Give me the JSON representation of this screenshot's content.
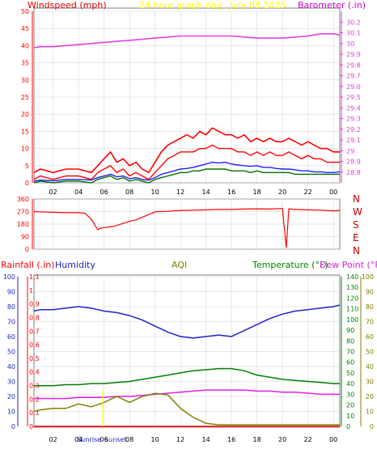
{
  "colors": {
    "wind": "#ff0000",
    "gust": "#ff0000",
    "avg": "#2020ff",
    "dark": "#007000",
    "baro": "#e040e0",
    "dir": "#ff0000",
    "header_title": "#ffff00",
    "rain": "#ff0000",
    "humidity": "#2222cc",
    "aqi": "#808000",
    "temp": "#008000",
    "dew": "#e020e0",
    "grid": "#d0d0d0",
    "axis_black": "#000000",
    "sun": "#ffff00"
  },
  "time_axis": {
    "labels": [
      "02",
      "04",
      "06",
      "08",
      "10",
      "12",
      "14",
      "16",
      "18",
      "20",
      "22",
      "00"
    ]
  },
  "chart_data": [
    {
      "id": "wind_baro",
      "type": "line",
      "title": "24 hour graph day , July 08 2025",
      "left_axis_label": "Windspeed (mph)",
      "right_axis_label": "Barometer (.in)",
      "x_range_hours": [
        0.5,
        24.5
      ],
      "left_ylim": [
        0,
        50
      ],
      "left_ticks": [
        "0",
        "5",
        "10",
        "15",
        "20",
        "25",
        "30",
        "35",
        "40",
        "45",
        "50"
      ],
      "right_ylim": [
        28.7,
        30.3
      ],
      "right_ticks": [
        "28.8",
        "28.9",
        "29",
        "29.1",
        "29.2",
        "29.3",
        "29.4",
        "29.5",
        "29.6",
        "29.7",
        "29.8",
        "29.9",
        "30",
        "30.1",
        "30.2"
      ],
      "series": [
        {
          "key": "gust",
          "color_key": "gust",
          "x": [
            0.5,
            1,
            2,
            3,
            4,
            5,
            5.5,
            6,
            6.5,
            7,
            7.5,
            8,
            8.5,
            9,
            9.5,
            10,
            10.5,
            11,
            11.5,
            12,
            12.5,
            13,
            13.5,
            14,
            14.5,
            15,
            15.5,
            16,
            16.5,
            17,
            17.5,
            18,
            18.5,
            19,
            19.5,
            20,
            20.5,
            21,
            21.5,
            22,
            22.5,
            23,
            23.5,
            24,
            24.5
          ],
          "values": [
            3,
            4,
            3,
            4,
            4,
            3,
            5,
            7,
            9,
            6,
            7,
            5,
            6,
            4,
            3,
            6,
            9,
            11,
            12,
            13,
            14,
            13,
            15,
            14,
            16,
            15,
            14,
            14,
            13,
            14,
            12,
            13,
            12,
            13,
            12,
            12,
            13,
            12,
            11,
            12,
            11,
            10,
            10,
            9,
            9
          ]
        },
        {
          "key": "wind",
          "color_key": "wind",
          "x": [
            0.5,
            1,
            2,
            3,
            4,
            5,
            5.5,
            6,
            6.5,
            7,
            7.5,
            8,
            8.5,
            9,
            9.5,
            10,
            10.5,
            11,
            11.5,
            12,
            12.5,
            13,
            13.5,
            14,
            14.5,
            15,
            15.5,
            16,
            16.5,
            17,
            17.5,
            18,
            18.5,
            19,
            19.5,
            20,
            20.5,
            21,
            21.5,
            22,
            22.5,
            23,
            23.5,
            24,
            24.5
          ],
          "values": [
            1,
            2,
            1,
            2,
            2,
            1,
            3,
            4,
            5,
            3,
            4,
            2,
            3,
            2,
            1,
            3,
            5,
            7,
            8,
            9,
            9,
            9,
            10,
            10,
            11,
            10,
            10,
            10,
            9,
            9,
            8,
            9,
            8,
            9,
            8,
            8,
            9,
            8,
            7,
            8,
            7,
            7,
            6,
            6,
            6
          ]
        },
        {
          "key": "avg",
          "color_key": "avg",
          "x": [
            0.5,
            1,
            2,
            3,
            4,
            5,
            5.5,
            6,
            6.5,
            7,
            7.5,
            8,
            8.5,
            9,
            9.5,
            10,
            10.5,
            11,
            11.5,
            12,
            12.5,
            13,
            13.5,
            14,
            14.5,
            15,
            15.5,
            16,
            16.5,
            17,
            17.5,
            18,
            18.5,
            19,
            19.5,
            20,
            20.5,
            21,
            21.5,
            22,
            22.5,
            23,
            23.5,
            24,
            24.5
          ],
          "values": [
            0.5,
            0.8,
            0.6,
            1,
            1,
            0.8,
            1.5,
            2,
            2.5,
            1.8,
            2,
            1.2,
            1.5,
            1,
            0.8,
            1.5,
            2.5,
            3,
            3.5,
            4,
            4.2,
            4.5,
            5,
            5.5,
            6,
            5.8,
            6,
            5.5,
            5.2,
            5,
            4.8,
            5,
            4.5,
            4.5,
            4.2,
            4,
            4,
            3.8,
            3.5,
            3.5,
            3.2,
            3.2,
            3,
            3,
            3.2
          ]
        },
        {
          "key": "dark",
          "color_key": "dark",
          "x": [
            0.5,
            1,
            2,
            3,
            4,
            5,
            5.5,
            6,
            6.5,
            7,
            7.5,
            8,
            8.5,
            9,
            9.5,
            10,
            10.5,
            11,
            11.5,
            12,
            12.5,
            13,
            13.5,
            14,
            14.5,
            15,
            15.5,
            16,
            16.5,
            17,
            17.5,
            18,
            18.5,
            19,
            19.5,
            20,
            20.5,
            21,
            21.5,
            22,
            22.5,
            23,
            23.5,
            24,
            24.5
          ],
          "values": [
            0,
            0.5,
            0,
            0.5,
            0.5,
            0,
            1,
            1.5,
            2,
            1,
            1.5,
            0.5,
            1,
            0.5,
            0,
            1,
            1.5,
            2,
            2.5,
            3,
            3,
            3.5,
            3.5,
            4,
            4,
            4,
            4,
            3.5,
            3.5,
            3.5,
            3,
            3.5,
            3,
            3,
            3,
            3,
            3,
            2.5,
            2.5,
            2.5,
            2.5,
            2.5,
            2.5,
            2.5,
            2.5
          ]
        },
        {
          "key": "baro",
          "color_key": "baro",
          "axis": "right",
          "x": [
            0.5,
            1,
            2,
            3,
            4,
            5,
            6,
            7,
            8,
            9,
            10,
            11,
            12,
            13,
            14,
            15,
            16,
            17,
            18,
            19,
            20,
            21,
            22,
            23,
            24,
            24.5
          ],
          "values": [
            29.96,
            29.97,
            29.97,
            29.98,
            29.99,
            30.0,
            30.01,
            30.02,
            30.03,
            30.04,
            30.05,
            30.06,
            30.07,
            30.07,
            30.07,
            30.07,
            30.07,
            30.06,
            30.05,
            30.05,
            30.05,
            30.06,
            30.07,
            30.09,
            30.09,
            30.08
          ]
        }
      ]
    },
    {
      "id": "wind_direction",
      "type": "line",
      "x_range_hours": [
        0.5,
        24.5
      ],
      "ylim": [
        0,
        360
      ],
      "left_ticks": [
        "0",
        "90",
        "180",
        "270",
        "360"
      ],
      "compass": [
        "N",
        "W",
        "S",
        "E",
        "N"
      ],
      "series": [
        {
          "key": "dir",
          "color_key": "dir",
          "x": [
            0.5,
            1,
            2,
            3,
            4,
            4.5,
            5,
            5.5,
            5.7,
            6,
            6.5,
            7,
            7.5,
            8,
            8.5,
            9,
            9.5,
            10,
            10.5,
            11,
            12,
            13,
            14,
            15,
            16,
            17,
            18,
            19,
            20,
            20.3,
            20.5,
            21,
            22,
            23,
            24,
            24.5
          ],
          "values": [
            270,
            268,
            265,
            262,
            262,
            258,
            215,
            140,
            150,
            155,
            160,
            170,
            185,
            200,
            210,
            230,
            248,
            268,
            270,
            272,
            278,
            280,
            282,
            285,
            285,
            288,
            290,
            288,
            292,
            10,
            290,
            285,
            282,
            280,
            275,
            278
          ]
        }
      ]
    },
    {
      "id": "rain_hum_temp",
      "type": "line",
      "header_labels": {
        "rainfall": "Rainfall (.in)",
        "humidity": "Humidity",
        "aqi": "AQI",
        "temperature": "Temperature (°F)",
        "dewpoint": "Dew Point (°F)"
      },
      "x_range_hours": [
        0.5,
        24.5
      ],
      "humidity_ticks": [
        "0",
        "10",
        "20",
        "30",
        "40",
        "50",
        "60",
        "70",
        "80",
        "90",
        "100"
      ],
      "rain_ticks": [
        "0",
        "0.1",
        "0.2",
        "0.3",
        "0.4",
        "0.5",
        "0.6",
        "0.7",
        "0.8",
        "0.9",
        "1",
        "1.1"
      ],
      "temp_ticks": [
        "0",
        "10",
        "20",
        "30",
        "40",
        "50",
        "60",
        "70",
        "80",
        "90",
        "100",
        "110",
        "120",
        "130",
        "140"
      ],
      "aqi_ticks": [
        "0",
        "10",
        "20",
        "30",
        "40",
        "50",
        "60",
        "70",
        "80",
        "90",
        "100"
      ],
      "sun_labels": [
        "Sunrise",
        "Sunset"
      ],
      "series": [
        {
          "key": "humidity",
          "color_key": "humidity",
          "axis": "humidity",
          "x": [
            0.5,
            1,
            2,
            3,
            4,
            5,
            6,
            7,
            8,
            9,
            10,
            11,
            12,
            13,
            14,
            15,
            16,
            17,
            18,
            19,
            20,
            21,
            22,
            23,
            24,
            24.5
          ],
          "values": [
            77,
            78,
            78,
            79,
            80,
            79,
            77,
            76,
            74,
            71,
            67,
            63,
            60,
            59,
            60,
            61,
            60,
            64,
            68,
            72,
            75,
            77,
            78,
            79,
            80,
            81
          ]
        },
        {
          "key": "temp",
          "color_key": "temp",
          "axis": "temp",
          "x": [
            0.5,
            1,
            2,
            3,
            4,
            5,
            6,
            7,
            8,
            9,
            10,
            11,
            12,
            13,
            14,
            15,
            16,
            17,
            18,
            19,
            20,
            21,
            22,
            23,
            24,
            24.5
          ],
          "values": [
            38,
            38,
            38,
            39,
            39,
            40,
            40,
            41,
            42,
            44,
            46,
            48,
            50,
            52,
            53,
            54,
            54,
            52,
            48,
            46,
            44,
            43,
            42,
            41,
            40,
            40
          ]
        },
        {
          "key": "dew",
          "color_key": "dew",
          "axis": "temp",
          "x": [
            0.5,
            1,
            2,
            3,
            4,
            5,
            6,
            7,
            8,
            9,
            10,
            11,
            12,
            13,
            14,
            15,
            16,
            17,
            18,
            19,
            20,
            21,
            22,
            23,
            24,
            24.5
          ],
          "values": [
            26,
            26,
            26,
            26,
            27,
            27,
            27,
            28,
            28,
            29,
            30,
            31,
            32,
            33,
            34,
            34,
            34,
            34,
            33,
            33,
            32,
            32,
            31,
            30,
            30,
            30
          ]
        },
        {
          "key": "aqi",
          "color_key": "aqi",
          "axis": "aqi",
          "x": [
            0.5,
            1,
            2,
            3,
            4,
            5,
            6,
            7,
            8,
            9,
            10,
            11,
            12,
            13,
            14,
            15,
            16,
            17,
            18,
            19,
            20,
            21,
            22,
            23,
            24,
            24.5
          ],
          "values": [
            10,
            11,
            12,
            12,
            15,
            13,
            16,
            20,
            16,
            20,
            22,
            21,
            12,
            6,
            2,
            1,
            1,
            1,
            1,
            1,
            1,
            1,
            1,
            1,
            1,
            1
          ]
        },
        {
          "key": "rain",
          "color_key": "rain",
          "axis": "rain",
          "x": [
            0.5,
            24.5
          ],
          "values": [
            0,
            0
          ]
        }
      ]
    }
  ]
}
